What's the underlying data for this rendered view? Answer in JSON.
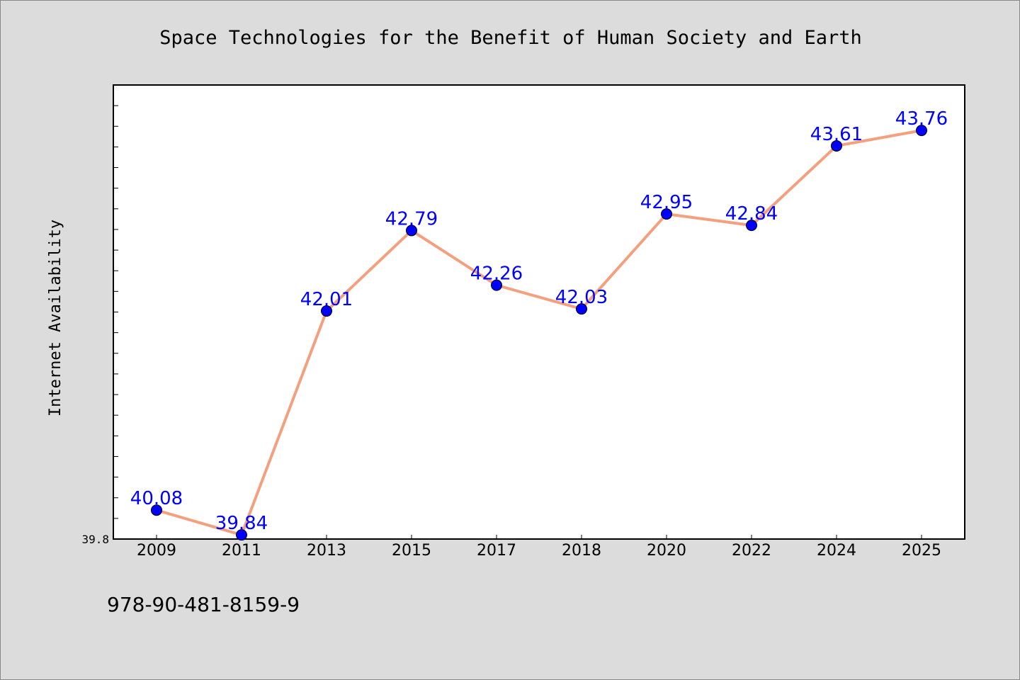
{
  "chart_data": {
    "type": "line",
    "title": "Space Technologies for the Benefit of Human Society and Earth",
    "xlabel": "",
    "ylabel": "Internet Availability",
    "categories": [
      "2009",
      "2011",
      "2013",
      "2015",
      "2017",
      "2018",
      "2020",
      "2022",
      "2024",
      "2025"
    ],
    "series": [
      {
        "values": [
          40.08,
          39.84,
          42.01,
          42.79,
          42.26,
          42.03,
          42.95,
          42.84,
          43.61,
          43.76
        ],
        "labels": [
          "40.08",
          "39.84",
          "42.01",
          "42.79",
          "42.26",
          "42.03",
          "42.95",
          "42.84",
          "43.61",
          "43.76"
        ]
      }
    ],
    "ylim": [
      39.8,
      44.2
    ],
    "yticks_labeled": [
      "39.8"
    ],
    "grid": false,
    "legend": "none",
    "colors": {
      "line": "#f4a07f",
      "marker": "#0000ff",
      "data_label": "#0000ff",
      "background": "#dcdcdc",
      "plot_area": "#ffffff"
    }
  },
  "footer": {
    "isbn": "978-90-481-8159-9"
  }
}
